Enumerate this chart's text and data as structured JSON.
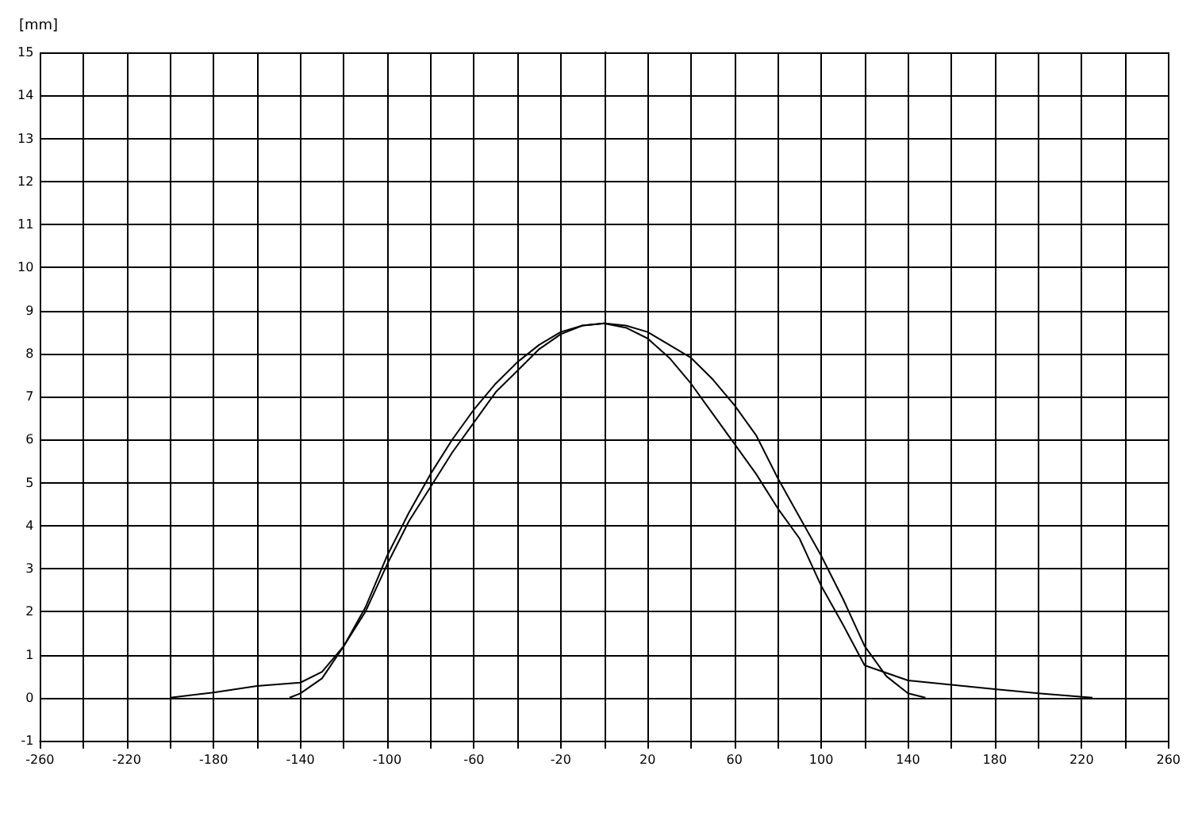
{
  "chart_data": {
    "type": "line",
    "ylabel": "[mm]",
    "xlim": [
      -260,
      260
    ],
    "ylim": [
      -1,
      15
    ],
    "xticks": [
      -260,
      {
        "value": -240,
        "label": null
      },
      -220,
      {
        "value": -200,
        "label": null
      },
      -180,
      {
        "value": -160,
        "label": null
      },
      -140,
      {
        "value": -120,
        "label": null
      },
      -100,
      {
        "value": -80,
        "label": null
      },
      -60,
      {
        "value": -40,
        "label": null
      },
      -20,
      {
        "value": 0,
        "label": null
      },
      20,
      {
        "value": 40,
        "label": null
      },
      60,
      {
        "value": 80,
        "label": null
      },
      100,
      {
        "value": 120,
        "label": null
      },
      140,
      {
        "value": 160,
        "label": null
      },
      180,
      {
        "value": 200,
        "label": null
      },
      220,
      {
        "value": 240,
        "label": null
      },
      260
    ],
    "yticks": [
      -1,
      0,
      1,
      2,
      3,
      4,
      5,
      6,
      7,
      8,
      9,
      10,
      11,
      12,
      13,
      14,
      15
    ],
    "grid": true,
    "marker": "none",
    "line_style": "solid",
    "series": [
      {
        "color": "#000000",
        "x": [
          -200,
          -180,
          -160,
          -140,
          -130,
          -120,
          -110,
          -100,
          -90,
          -80,
          -70,
          -60,
          -50,
          -40,
          -30,
          -20,
          -10,
          0,
          10,
          20,
          30,
          40,
          50,
          60,
          70,
          80,
          90,
          100,
          110,
          120,
          140,
          160,
          180,
          200,
          225
        ],
        "values": [
          0,
          0.12,
          0.27,
          0.35,
          0.6,
          1.2,
          2.1,
          3.3,
          4.3,
          5.2,
          6.0,
          6.7,
          7.3,
          7.8,
          8.2,
          8.5,
          8.65,
          8.7,
          8.6,
          8.35,
          7.9,
          7.3,
          6.6,
          5.9,
          5.2,
          4.4,
          3.7,
          2.6,
          1.7,
          0.75,
          0.4,
          0.3,
          0.2,
          0.1,
          0
        ]
      },
      {
        "color": "#000000",
        "x": [
          -145,
          -140,
          -130,
          -120,
          -110,
          -100,
          -90,
          -80,
          -70,
          -60,
          -50,
          -40,
          -30,
          -20,
          -10,
          0,
          10,
          20,
          30,
          40,
          50,
          60,
          70,
          80,
          90,
          100,
          110,
          120,
          130,
          140,
          148
        ],
        "values": [
          0,
          0.1,
          0.45,
          1.2,
          2.0,
          3.1,
          4.1,
          4.9,
          5.7,
          6.4,
          7.1,
          7.6,
          8.1,
          8.45,
          8.65,
          8.7,
          8.65,
          8.5,
          8.2,
          7.9,
          7.4,
          6.8,
          6.1,
          5.1,
          4.2,
          3.3,
          2.3,
          1.2,
          0.5,
          0.1,
          0
        ]
      }
    ]
  }
}
